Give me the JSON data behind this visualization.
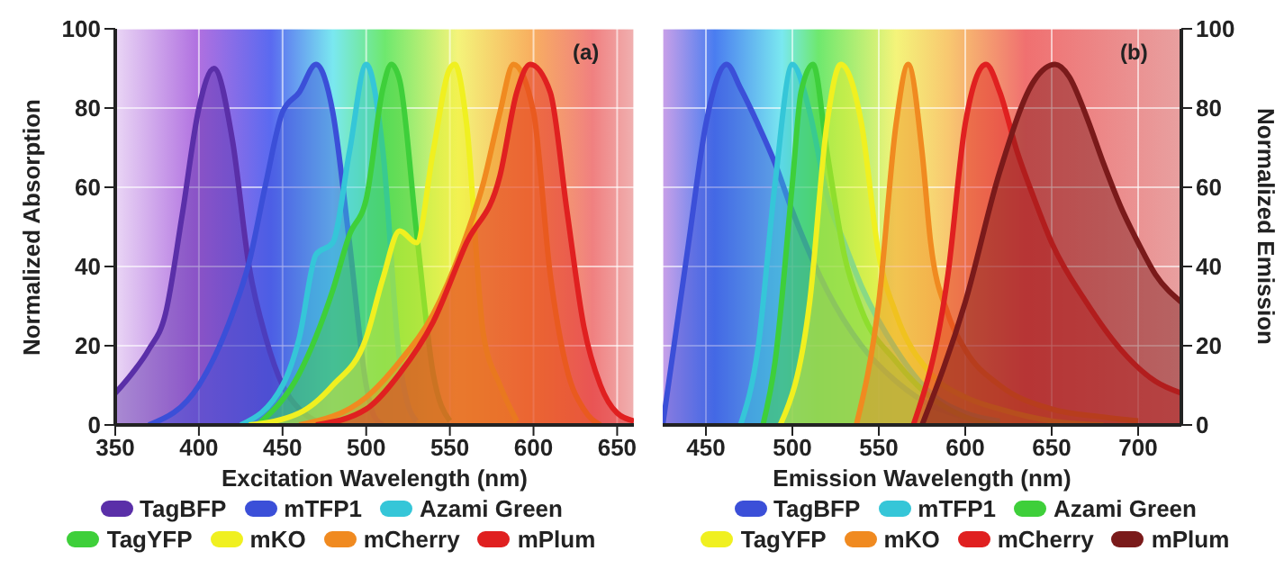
{
  "chart_data": [
    {
      "type": "area",
      "title": "(a)",
      "xlabel": "Excitation Wavelength (nm)",
      "ylabel": "Normalized Absorption",
      "xlim": [
        350,
        660
      ],
      "xticks": [
        350,
        400,
        450,
        500,
        550,
        600,
        650
      ],
      "ylim": [
        0,
        100
      ],
      "yticks": [
        0,
        20,
        40,
        60,
        80,
        100
      ],
      "grid": true,
      "legend": "bottom",
      "series": [
        {
          "name": "TagBFP",
          "color": "#5a2fa8",
          "x": [
            350,
            360,
            370,
            380,
            390,
            400,
            409,
            420,
            430,
            440,
            450,
            460,
            470,
            480
          ],
          "values": [
            8,
            13,
            19,
            28,
            53,
            80,
            90,
            72,
            40,
            22,
            10,
            4,
            1,
            0
          ]
        },
        {
          "name": "mTFP1",
          "color": "#3b4fd8",
          "x": [
            370,
            400,
            420,
            430,
            440,
            450,
            460,
            470,
            480,
            490,
            500,
            505,
            510
          ],
          "values": [
            0,
            10,
            28,
            41,
            61,
            79,
            84,
            91,
            79,
            46,
            10,
            2,
            0
          ]
        },
        {
          "name": "Azami Green",
          "color": "#35c6d8",
          "x": [
            425,
            450,
            460,
            470,
            480,
            490,
            500,
            510,
            520,
            525,
            530
          ],
          "values": [
            0,
            10,
            22,
            43,
            46,
            69,
            91,
            69,
            16,
            5,
            1
          ]
        },
        {
          "name": "TagYFP",
          "color": "#3ecf3a",
          "x": [
            435,
            460,
            480,
            490,
            500,
            510,
            515,
            520,
            530,
            540,
            550
          ],
          "values": [
            0,
            13,
            34,
            48,
            57,
            85,
            91,
            87,
            49,
            13,
            1
          ]
        },
        {
          "name": "mKO",
          "color": "#f0f020",
          "x": [
            430,
            460,
            480,
            500,
            510,
            520,
            530,
            540,
            550,
            553,
            560,
            570,
            580,
            590
          ],
          "values": [
            0,
            3,
            10,
            22,
            37,
            49,
            46,
            69,
            90,
            91,
            76,
            23,
            10,
            1
          ]
        },
        {
          "name": "mCherry",
          "color": "#f08a20",
          "x": [
            460,
            500,
            520,
            540,
            560,
            570,
            580,
            588,
            600,
            610,
            620,
            630,
            640
          ],
          "values": [
            0,
            7,
            16,
            28,
            48,
            61,
            79,
            91,
            79,
            38,
            14,
            4,
            0
          ]
        },
        {
          "name": "mPlum",
          "color": "#e02020",
          "x": [
            470,
            500,
            520,
            540,
            560,
            580,
            590,
            598,
            610,
            620,
            630,
            640,
            650,
            660
          ],
          "values": [
            0,
            4,
            13,
            26,
            46,
            63,
            84,
            91,
            84,
            54,
            25,
            10,
            3,
            1
          ]
        }
      ]
    },
    {
      "type": "area",
      "title": "(b)",
      "xlabel": "Emission Wavelength (nm)",
      "y2label": "Normalized Emission",
      "xlim": [
        425,
        725
      ],
      "xticks": [
        450,
        500,
        550,
        600,
        650,
        700
      ],
      "y2lim": [
        0,
        100
      ],
      "y2ticks": [
        0,
        20,
        40,
        60,
        80,
        100
      ],
      "grid": true,
      "legend": "bottom",
      "series": [
        {
          "name": "TagBFP",
          "color": "#3b4fd8",
          "axis": "y2",
          "x": [
            425,
            440,
            450,
            462,
            470,
            480,
            490,
            500,
            520,
            540,
            560,
            580,
            600,
            620
          ],
          "values": [
            0,
            46,
            76,
            91,
            85,
            76,
            66,
            54,
            34,
            20,
            11,
            5,
            2,
            0
          ]
        },
        {
          "name": "mTFP1",
          "color": "#35c6d8",
          "axis": "y2",
          "x": [
            470,
            480,
            490,
            500,
            510,
            520,
            530,
            540,
            560,
            580,
            600,
            620
          ],
          "values": [
            0,
            19,
            61,
            91,
            79,
            58,
            46,
            35,
            19,
            8,
            3,
            1
          ]
        },
        {
          "name": "Azami Green",
          "color": "#3ecf3a",
          "axis": "y2",
          "x": [
            483,
            490,
            500,
            505,
            512,
            520,
            530,
            540,
            560,
            580,
            600,
            620
          ],
          "values": [
            0,
            16,
            61,
            84,
            91,
            69,
            43,
            29,
            16,
            7,
            2,
            0
          ]
        },
        {
          "name": "TagYFP",
          "color": "#f0f020",
          "axis": "y2",
          "x": [
            493,
            510,
            520,
            528,
            540,
            550,
            560,
            580,
            600,
            620,
            650,
            680
          ],
          "values": [
            0,
            31,
            76,
            91,
            76,
            43,
            28,
            13,
            7,
            4,
            1,
            0
          ]
        },
        {
          "name": "mKO",
          "color": "#f08a20",
          "axis": "y2",
          "x": [
            537,
            550,
            560,
            567,
            575,
            580,
            590,
            600,
            620,
            650,
            680,
            700
          ],
          "values": [
            0,
            31,
            76,
            91,
            69,
            46,
            28,
            19,
            10,
            4,
            2,
            1
          ]
        },
        {
          "name": "mCherry",
          "color": "#e02020",
          "axis": "y2",
          "x": [
            570,
            590,
            600,
            612,
            620,
            630,
            640,
            650,
            670,
            690,
            710,
            725
          ],
          "values": [
            0,
            38,
            76,
            91,
            84,
            69,
            57,
            46,
            31,
            19,
            11,
            8
          ]
        },
        {
          "name": "mPlum",
          "color": "#7a1a1a",
          "axis": "y2",
          "x": [
            575,
            600,
            620,
            640,
            652,
            660,
            670,
            680,
            690,
            700,
            710,
            725
          ],
          "values": [
            0,
            31,
            64,
            87,
            91,
            88,
            78,
            66,
            55,
            46,
            38,
            31
          ]
        }
      ]
    }
  ]
}
